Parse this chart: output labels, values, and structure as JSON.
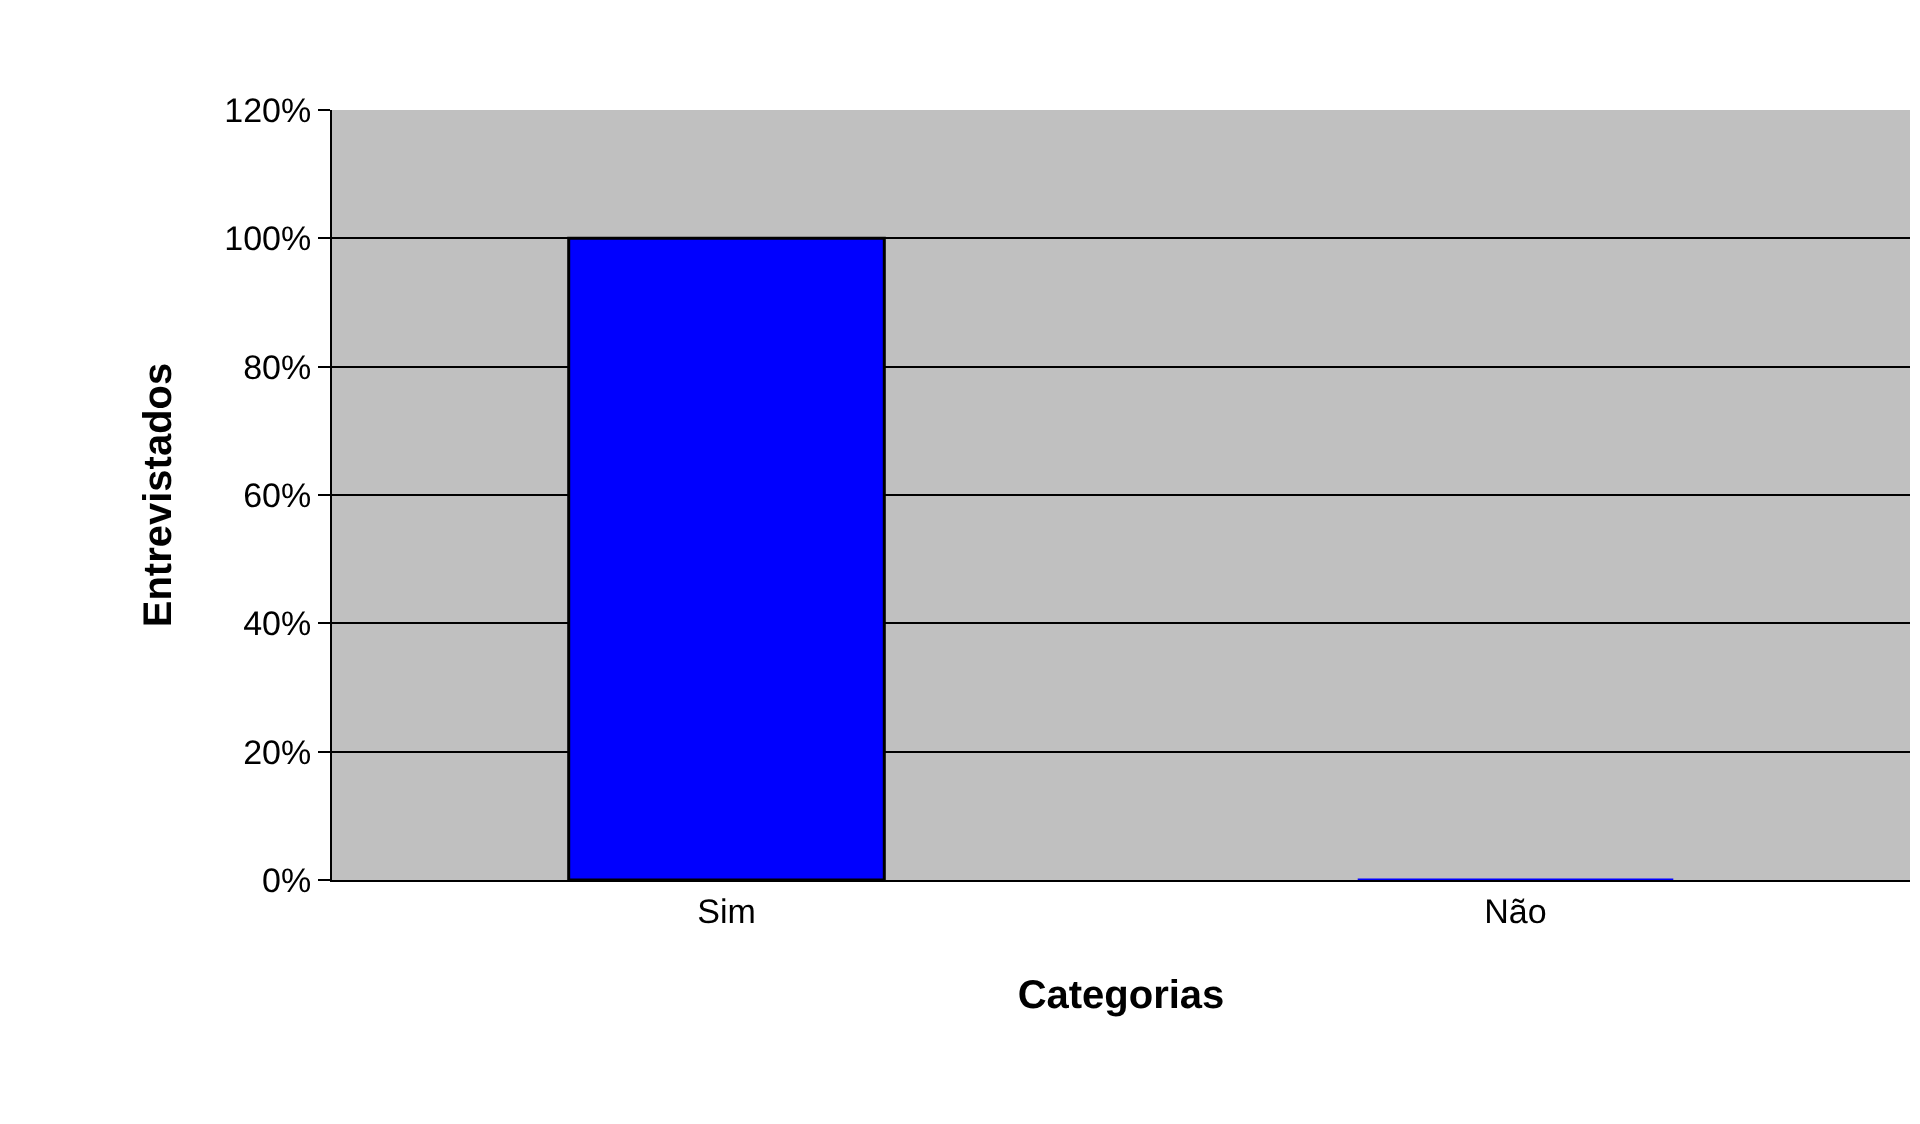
{
  "chart_data": {
    "type": "bar",
    "xlabel": "Categorias",
    "ylabel": "Entrevistados",
    "categories": [
      "Sim",
      "Não"
    ],
    "series": [
      {
        "color": "#0000ff",
        "values": [
          100,
          0
        ]
      }
    ],
    "ylim": [
      0,
      120
    ],
    "yticks": [
      {
        "value": 0,
        "label": "0%"
      },
      {
        "value": 20,
        "label": "20%"
      },
      {
        "value": 40,
        "label": "40%"
      },
      {
        "value": 60,
        "label": "60%"
      },
      {
        "value": 80,
        "label": "80%"
      },
      {
        "value": 100,
        "label": "100%"
      },
      {
        "value": 120,
        "label": "120%"
      }
    ],
    "grid": "y"
  }
}
